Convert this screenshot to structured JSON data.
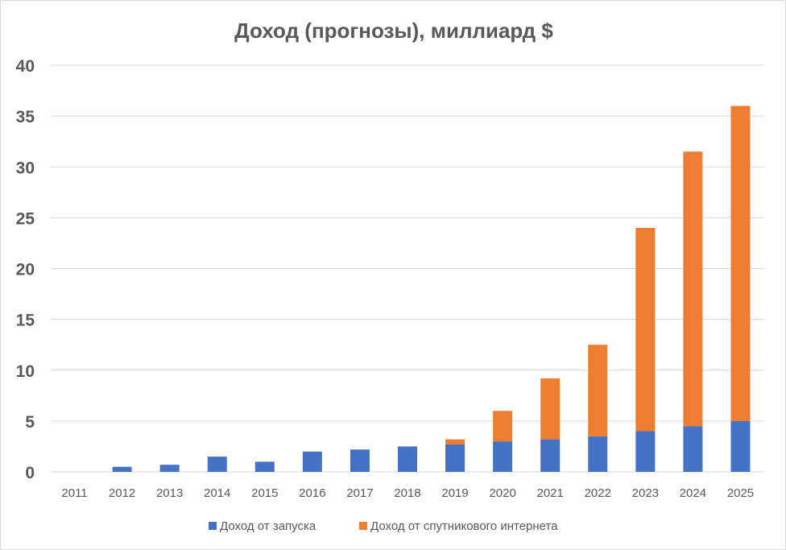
{
  "chart_data": {
    "type": "bar",
    "stacked": true,
    "title": "Доход (прогнозы), миллиард $",
    "xlabel": "",
    "ylabel": "",
    "ylim": [
      0,
      40
    ],
    "yticks": [
      0,
      5,
      10,
      15,
      20,
      25,
      30,
      35,
      40
    ],
    "grid": true,
    "legend_position": "bottom",
    "categories": [
      "2011",
      "2012",
      "2013",
      "2014",
      "2015",
      "2016",
      "2017",
      "2018",
      "2019",
      "2020",
      "2021",
      "2022",
      "2023",
      "2024",
      "2025"
    ],
    "series": [
      {
        "name": "Доход от запуска",
        "color": "#4472C4",
        "values": [
          0,
          0.5,
          0.7,
          1.5,
          1.0,
          2.0,
          2.2,
          2.5,
          2.7,
          3.0,
          3.2,
          3.5,
          4.0,
          4.5,
          5.0
        ]
      },
      {
        "name": "Доход от спутникового интернета",
        "color": "#ED7D31",
        "values": [
          0,
          0,
          0,
          0,
          0,
          0,
          0,
          0,
          0.5,
          3.0,
          6.0,
          9.0,
          20.0,
          27.0,
          31.0
        ]
      }
    ]
  }
}
